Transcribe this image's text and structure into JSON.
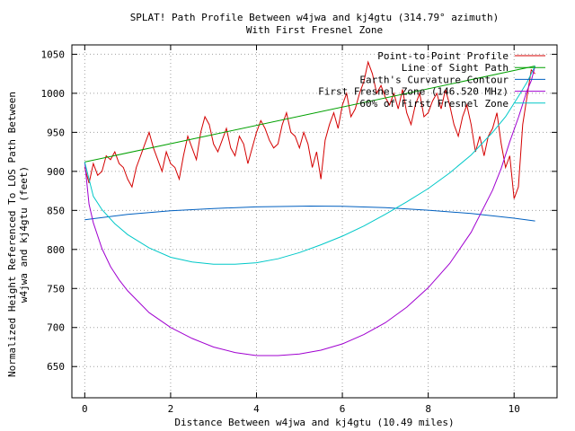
{
  "chart_data": {
    "type": "line",
    "title": "SPLAT! Path Profile Between w4jwa and kj4gtu (314.79° azimuth)",
    "subtitle": "With First Fresnel Zone",
    "xlabel": "Distance Between w4jwa and kj4gtu (10.49 miles)",
    "ylabel_line1": "Normalized Height Referenced To LOS Path Between",
    "ylabel_line2": "w4jwa and kj4gtu (feet)",
    "xlim": [
      -0.3,
      11.0
    ],
    "ylim": [
      610,
      1062
    ],
    "xticks": [
      0,
      2,
      4,
      6,
      8,
      10
    ],
    "yticks": [
      650,
      700,
      750,
      800,
      850,
      900,
      950,
      1000,
      1050
    ],
    "grid": true,
    "legend_position": "top-right",
    "series": [
      {
        "name": "Point-to-Point Profile",
        "color": "#d40000",
        "x": [
          0.0,
          0.1,
          0.2,
          0.3,
          0.4,
          0.5,
          0.6,
          0.7,
          0.8,
          0.9,
          1.0,
          1.1,
          1.2,
          1.3,
          1.4,
          1.5,
          1.6,
          1.7,
          1.8,
          1.9,
          2.0,
          2.1,
          2.2,
          2.3,
          2.4,
          2.5,
          2.6,
          2.7,
          2.8,
          2.9,
          3.0,
          3.1,
          3.2,
          3.3,
          3.4,
          3.5,
          3.6,
          3.7,
          3.8,
          3.9,
          4.0,
          4.1,
          4.2,
          4.3,
          4.4,
          4.5,
          4.6,
          4.7,
          4.8,
          4.9,
          5.0,
          5.1,
          5.2,
          5.3,
          5.4,
          5.5,
          5.6,
          5.7,
          5.8,
          5.9,
          6.0,
          6.1,
          6.2,
          6.3,
          6.4,
          6.5,
          6.6,
          6.7,
          6.8,
          6.9,
          7.0,
          7.1,
          7.2,
          7.3,
          7.4,
          7.5,
          7.6,
          7.7,
          7.8,
          7.9,
          8.0,
          8.1,
          8.2,
          8.3,
          8.4,
          8.5,
          8.6,
          8.7,
          8.8,
          8.9,
          9.0,
          9.1,
          9.2,
          9.3,
          9.4,
          9.5,
          9.6,
          9.7,
          9.8,
          9.9,
          10.0,
          10.1,
          10.2,
          10.3,
          10.4,
          10.49
        ],
        "values": [
          905,
          885,
          910,
          895,
          900,
          920,
          915,
          925,
          910,
          905,
          890,
          880,
          905,
          920,
          935,
          950,
          930,
          915,
          900,
          925,
          910,
          905,
          890,
          920,
          945,
          930,
          915,
          950,
          970,
          960,
          935,
          925,
          940,
          955,
          930,
          920,
          945,
          935,
          910,
          930,
          950,
          965,
          955,
          940,
          930,
          935,
          960,
          975,
          950,
          945,
          930,
          950,
          935,
          905,
          925,
          890,
          940,
          960,
          975,
          955,
          985,
          1000,
          970,
          980,
          1000,
          1015,
          1040,
          1025,
          1000,
          1010,
          995,
          985,
          1000,
          980,
          1005,
          975,
          960,
          985,
          1000,
          970,
          975,
          990,
          1000,
          980,
          1005,
          985,
          960,
          945,
          970,
          985,
          960,
          925,
          945,
          920,
          945,
          955,
          975,
          935,
          905,
          920,
          865,
          880,
          960,
          995,
          1030,
          1025
        ]
      },
      {
        "name": "Line of Sight Path",
        "color": "#00a000",
        "x": [
          0.0,
          10.49
        ],
        "values": [
          912,
          1035
        ]
      },
      {
        "name": "Earth's Curvature Contour",
        "color": "#0060c0",
        "x": [
          0.0,
          1.0,
          2.0,
          3.0,
          4.0,
          5.245,
          6.0,
          7.0,
          8.0,
          9.0,
          10.0,
          10.49
        ],
        "values": [
          838,
          845,
          849.5,
          852.5,
          854.5,
          855.5,
          855.2,
          853.5,
          850.3,
          846,
          840,
          836.5
        ]
      },
      {
        "name": "First Fresnel Zone (146.520 MHz)",
        "color": "#a000d0",
        "x": [
          0.0,
          0.1,
          0.2,
          0.4,
          0.6,
          0.8,
          1.0,
          1.5,
          2.0,
          2.5,
          3.0,
          3.5,
          4.0,
          4.5,
          5.0,
          5.5,
          6.0,
          6.5,
          7.0,
          7.5,
          8.0,
          8.5,
          9.0,
          9.5,
          9.7,
          9.9,
          10.1,
          10.3,
          10.4,
          10.49
        ],
        "values": [
          912,
          858,
          834,
          801,
          778,
          761,
          747,
          719,
          700,
          686,
          675,
          668,
          664,
          664,
          666,
          671,
          679,
          691,
          706,
          726,
          751,
          782,
          822,
          876,
          904,
          938,
          969,
          1003,
          1016,
          1035
        ]
      },
      {
        "name": "60% of First Fresnel Zone",
        "color": "#00c8c8",
        "x": [
          0.0,
          0.2,
          0.4,
          0.7,
          1.0,
          1.5,
          2.0,
          2.5,
          3.0,
          3.5,
          4.0,
          4.5,
          5.0,
          5.5,
          6.0,
          6.5,
          7.0,
          7.5,
          8.0,
          8.5,
          9.0,
          9.5,
          9.8,
          10.1,
          10.3,
          10.49
        ],
        "values": [
          912,
          868,
          851,
          833,
          819,
          802,
          790,
          784,
          781,
          781,
          783,
          788,
          796,
          806,
          817,
          830,
          845,
          861,
          878,
          898,
          921,
          950,
          970,
          996,
          1014,
          1035
        ]
      }
    ]
  }
}
